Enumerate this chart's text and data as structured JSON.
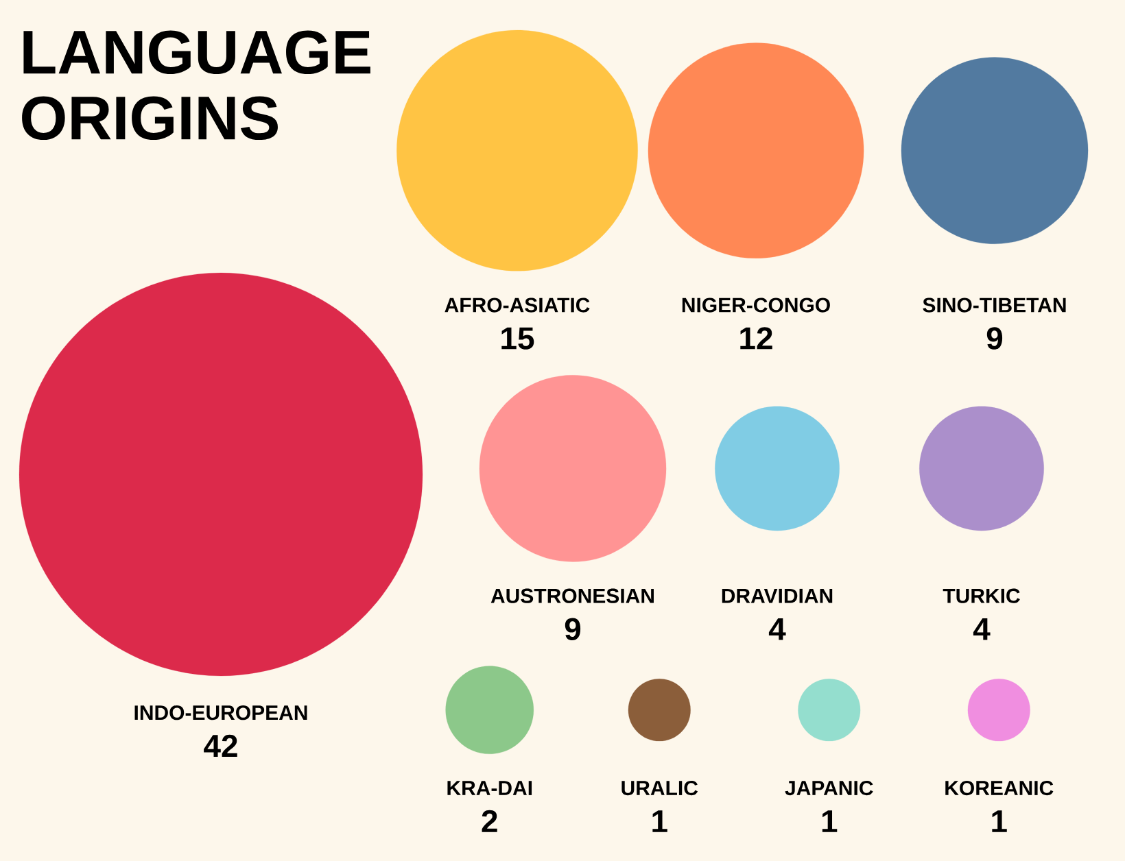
{
  "chart_data": {
    "type": "other",
    "title": "LANGUAGE ORIGINS",
    "categories": [
      "INDO-EUROPEAN",
      "AFRO-ASIATIC",
      "NIGER-CONGO",
      "SINO-TIBETAN",
      "AUSTRONESIAN",
      "DRAVIDIAN",
      "TURKIC",
      "KRA-DAI",
      "URALIC",
      "JAPANIC",
      "KOREANIC"
    ],
    "values": [
      42,
      15,
      12,
      9,
      9,
      4,
      4,
      2,
      1,
      1,
      1
    ],
    "colors": [
      "#dc2a4b",
      "#ffc444",
      "#ff8855",
      "#527aa0",
      "#ff9494",
      "#80cce4",
      "#ab8fcb",
      "#8cc88a",
      "#8b5e3a",
      "#94dece",
      "#f08ee0"
    ],
    "data_labels": true
  }
}
